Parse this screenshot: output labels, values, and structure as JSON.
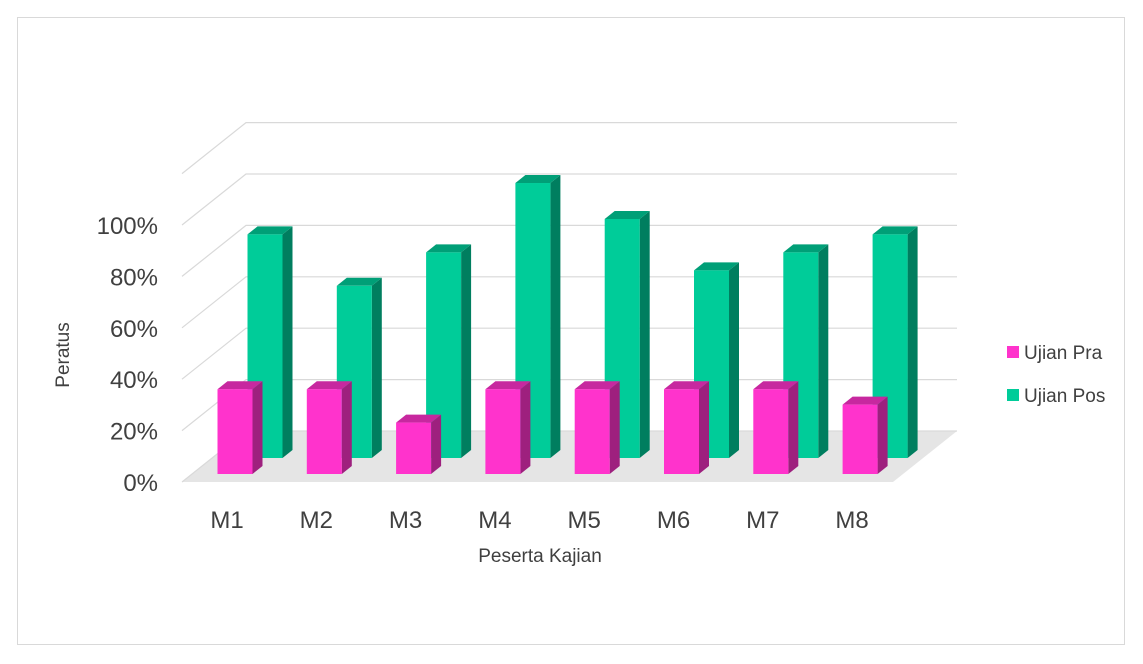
{
  "chart_data": {
    "type": "bar",
    "style": "3d-clustered-column",
    "title": "",
    "xlabel": "Peserta Kajian",
    "ylabel": "Peratus",
    "categories": [
      "M1",
      "M2",
      "M3",
      "M4",
      "M5",
      "M6",
      "M7",
      "M8"
    ],
    "ylim": [
      0,
      100
    ],
    "y_ticks": [
      "0%",
      "20%",
      "40%",
      "60%",
      "80%",
      "100%"
    ],
    "series": [
      {
        "name": "Ujian Pra",
        "values": [
          33,
          33,
          20,
          33,
          33,
          33,
          33,
          27
        ],
        "color": "#ff33cc"
      },
      {
        "name": "Ujian Pos",
        "values": [
          87,
          67,
          80,
          107,
          93,
          73,
          80,
          87
        ],
        "color": "#00cc99"
      }
    ],
    "grid": true,
    "legend_position": "right"
  },
  "colors": {
    "gridline": "#d9d9d9",
    "floor": "#d0d0d0",
    "frame_border": "#d9d9d9"
  }
}
